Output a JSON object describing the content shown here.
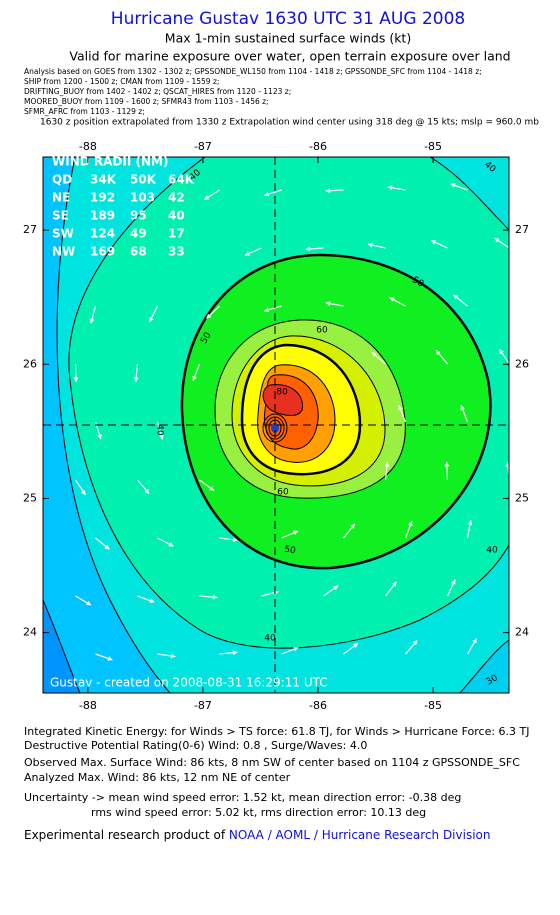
{
  "header": {
    "title": "Hurricane Gustav 1630 UTC 31 AUG 2008",
    "subtitle": "Max 1-min sustained surface winds (kt)",
    "valid": "Valid for marine exposure over water, open terrain exposure over land",
    "analysis_lines": [
      "Analysis based on  GOES from 1302 - 1302 z;  GPSSONDE_WL150 from 1104 - 1418 z;  GPSSONDE_SFC from 1104 - 1418 z;",
      "SHIP from 1200 - 1500 z;  CMAN from 1109 - 1559 z;",
      "DRIFTING_BUOY from 1402 - 1402 z;  QSCAT_HIRES from 1120 - 1123 z;",
      "MOORED_BUOY from 1109 - 1600 z;  SFMR43 from 1103 - 1456 z;",
      "SFMR_AFRC from 1103 - 1129 z;"
    ],
    "position_note": "1630 z position extrapolated from 1330 z Extrapolation wind center using 318 deg @ 15 kts; mslp = 960.0 mb"
  },
  "map": {
    "xlim": [
      -88.39,
      -84.34
    ],
    "ylim": [
      23.55,
      27.545
    ],
    "xticks": [
      -88,
      -87,
      -86,
      -85
    ],
    "yticks": [
      27,
      26,
      25,
      24
    ],
    "wind_radii": {
      "title": "WIND RADII (NM)",
      "header": [
        "QD",
        "34K",
        "50K",
        "64K"
      ],
      "rows": [
        [
          "NE",
          "192",
          "103",
          "42"
        ],
        [
          "SE",
          "189",
          "95",
          "40"
        ],
        [
          "SW",
          "124",
          "49",
          "17"
        ],
        [
          "NW",
          "169",
          "68",
          "33"
        ]
      ]
    },
    "contour_labels": [
      "40",
      "40",
      "40",
      "40",
      "40",
      "50",
      "50",
      "50",
      "60",
      "60",
      "30",
      "80"
    ],
    "credit": "Gustav - created on 2008-08-31 16:29:11 UTC"
  },
  "footer": {
    "lines": [
      "Integrated Kinetic Energy:  for Winds > TS force: 61.8 TJ,  for Winds > Hurricane Force: 6.3 TJ",
      "Destructive Potential Rating(0-6)   Wind: 0.8 , Surge/Waves: 4.0",
      "Observed Max. Surface Wind: 86 kts, 8 nm SW of center based on 1104 z GPSSONDE_SFC",
      "Analyzed Max. Wind: 86 kts, 12 nm NE of center",
      "Uncertainty -> mean wind speed error: 1.52 kt,   mean direction error:  -0.38 deg",
      "rms wind speed error: 5.02 kt,   rms direction error: 10.13 deg"
    ],
    "product": "Experimental research product of ",
    "org": "NOAA / AOML / Hurricane Research Division"
  }
}
